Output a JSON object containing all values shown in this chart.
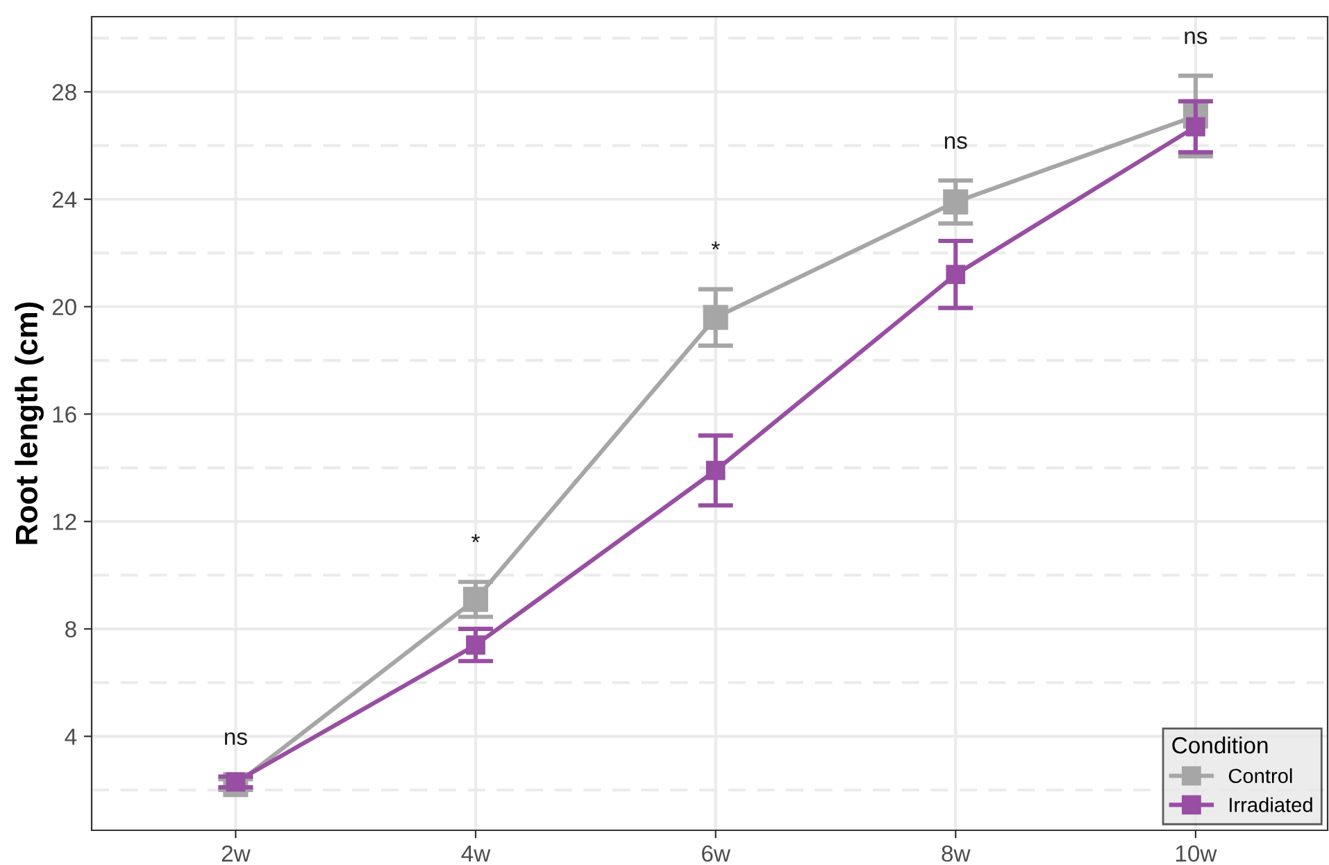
{
  "chart_data": {
    "type": "line",
    "ylabel": "Root length (cm)",
    "legend_title": "Condition",
    "categories": [
      "2w",
      "4w",
      "6w",
      "8w",
      "10w"
    ],
    "series": [
      {
        "name": "Control",
        "color": "#a6a6a6",
        "values": [
          2.2,
          9.1,
          19.6,
          23.9,
          27.1
        ],
        "errors": [
          0.2,
          0.65,
          1.05,
          0.8,
          1.5
        ]
      },
      {
        "name": "Irradiated",
        "color": "#984ea3",
        "values": [
          2.3,
          7.4,
          13.9,
          21.2,
          26.7
        ],
        "errors": [
          0.2,
          0.6,
          1.3,
          1.25,
          0.95
        ]
      }
    ],
    "ylim": [
      0.5,
      30.8
    ],
    "yticks": [
      4,
      8,
      12,
      16,
      20,
      24,
      28
    ],
    "annotations": [
      "ns",
      "*",
      "*",
      "ns",
      "ns"
    ],
    "grid": true,
    "legend": "bottom right",
    "marker": "square",
    "line_style": "solid"
  }
}
